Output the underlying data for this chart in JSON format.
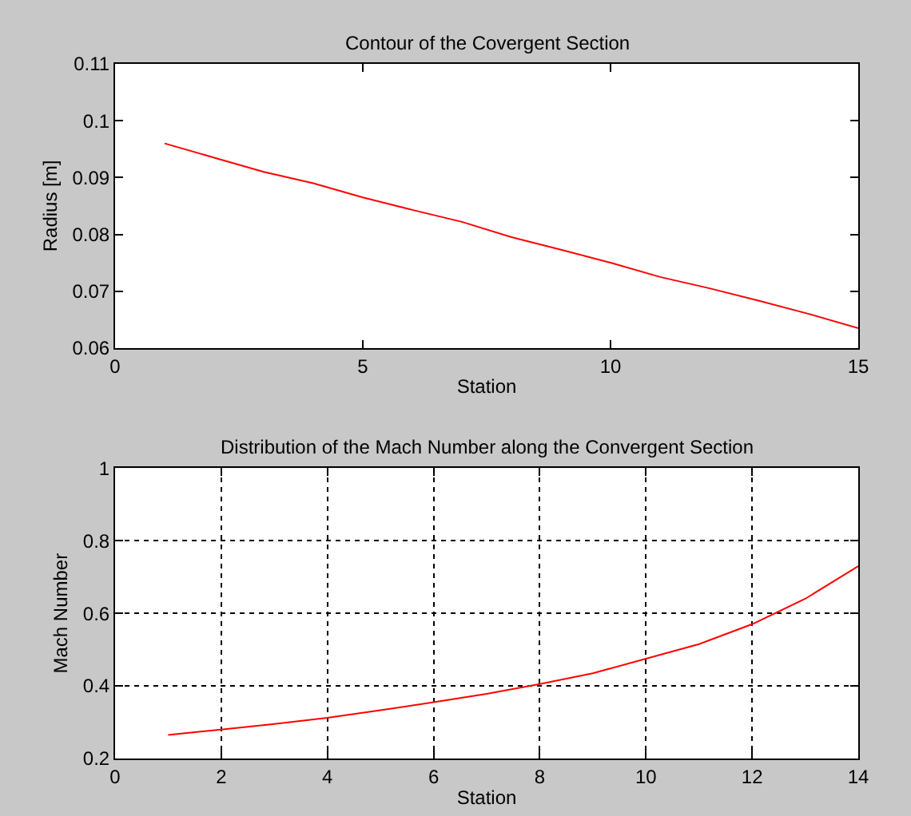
{
  "chart_data": [
    {
      "type": "line",
      "title": "Contour of the Covergent Section",
      "xlabel": "Station",
      "ylabel": "Radius [m]",
      "x": [
        1,
        2,
        3,
        4,
        5,
        6,
        7,
        8,
        9,
        10,
        11,
        12,
        13,
        14,
        15
      ],
      "series": [
        {
          "color": "#ff0000",
          "values": [
            0.096,
            0.0935,
            0.091,
            0.089,
            0.0865,
            0.0843,
            0.0822,
            0.0795,
            0.0773,
            0.075,
            0.0725,
            0.0705,
            0.0683,
            0.066,
            0.0635
          ]
        }
      ],
      "xlim": [
        0,
        15
      ],
      "xticks": [
        0,
        5,
        10,
        15
      ],
      "ylim": [
        0.06,
        0.11
      ],
      "yticks": [
        0.06,
        0.07,
        0.08,
        0.09,
        0.1,
        0.11
      ],
      "grid": false
    },
    {
      "type": "line",
      "title": "Distribution of the Mach Number along the Convergent Section",
      "xlabel": "Station",
      "ylabel": "Mach Number",
      "x": [
        1,
        2,
        3,
        4,
        5,
        6,
        7,
        8,
        9,
        10,
        11,
        12,
        13,
        14
      ],
      "series": [
        {
          "color": "#ff0000",
          "values": [
            0.265,
            0.28,
            0.295,
            0.312,
            0.333,
            0.355,
            0.378,
            0.405,
            0.435,
            0.475,
            0.515,
            0.57,
            0.64,
            0.73
          ]
        }
      ],
      "xlim": [
        0,
        14
      ],
      "xticks": [
        0,
        2,
        4,
        6,
        8,
        10,
        12,
        14
      ],
      "ylim": [
        0.2,
        1
      ],
      "yticks": [
        0.2,
        0.4,
        0.6,
        0.8,
        1
      ],
      "grid": true,
      "line_style": "solid"
    }
  ]
}
